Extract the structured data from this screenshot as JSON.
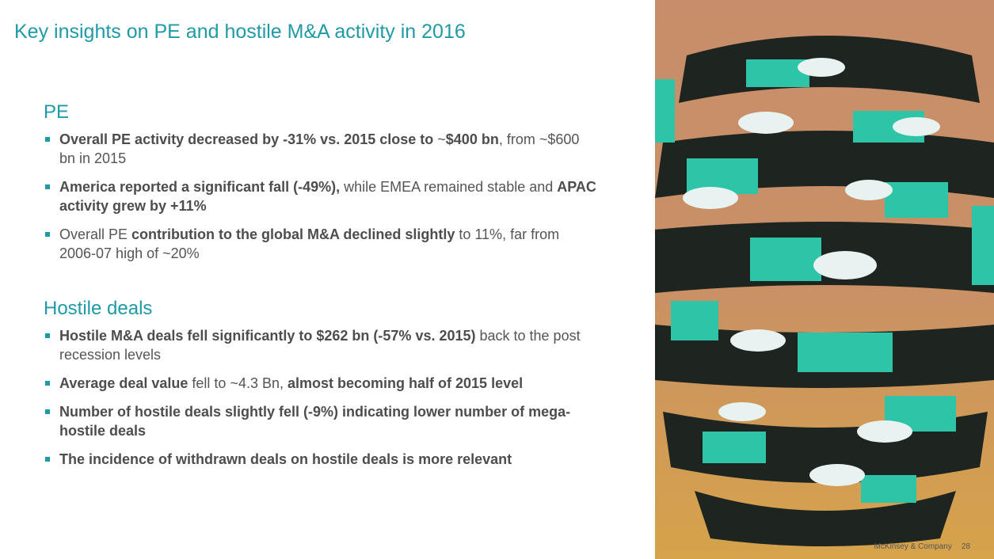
{
  "title": "Key insights on PE and hostile M&A activity in 2016",
  "sections": [
    {
      "heading": "PE",
      "bullets": [
        {
          "runs": [
            {
              "text": "Overall PE activity decreased by -31% vs. 2015 close to",
              "bold": true
            },
            {
              "text": " ~",
              "bold": false
            },
            {
              "text": "$400 bn",
              "bold": true
            },
            {
              "text": ", from ~$600 bn in 2015",
              "bold": false
            }
          ]
        },
        {
          "runs": [
            {
              "text": "America reported a significant fall (-49%),",
              "bold": true
            },
            {
              "text": " while EMEA remained stable and ",
              "bold": false
            },
            {
              "text": "APAC activity grew by +11%",
              "bold": true
            }
          ]
        },
        {
          "runs": [
            {
              "text": "Overall PE ",
              "bold": false
            },
            {
              "text": "contribution to the global M&A declined slightly",
              "bold": true
            },
            {
              "text": " to 11%, far from 2006-07 high of ~20%",
              "bold": false
            }
          ]
        }
      ]
    },
    {
      "heading": "Hostile deals",
      "bullets": [
        {
          "runs": [
            {
              "text": "Hostile M&A deals fell significantly to $262 bn (-57% vs. 2015)",
              "bold": true
            },
            {
              "text": " back to the post recession levels",
              "bold": false
            }
          ]
        },
        {
          "runs": [
            {
              "text": "Average deal value",
              "bold": true
            },
            {
              "text": " fell to ~4.3 Bn, ",
              "bold": false
            },
            {
              "text": "almost becoming half of 2015 level",
              "bold": true
            }
          ]
        },
        {
          "runs": [
            {
              "text": "Number of hostile deals slightly fell (-9%) indicating lower number of mega-hostile deals",
              "bold": true
            }
          ]
        },
        {
          "runs": [
            {
              "text": "The incidence of withdrawn deals on hostile deals is more relevant",
              "bold": true
            }
          ]
        }
      ]
    }
  ],
  "footer": {
    "source": "McKinsey & Company",
    "page": "28"
  }
}
